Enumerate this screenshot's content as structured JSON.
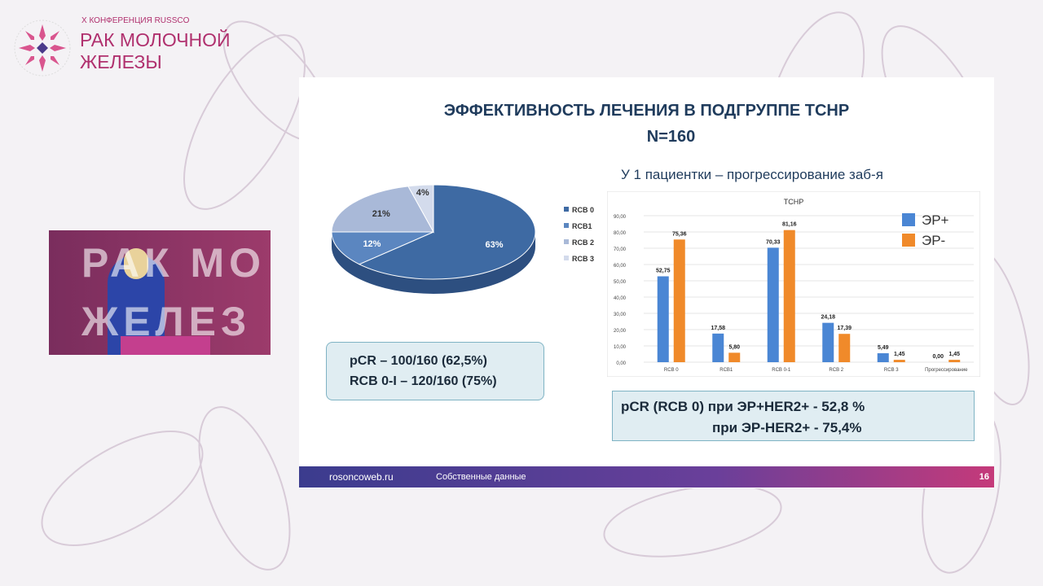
{
  "logo": {
    "subtitle": "X КОНФЕРЕНЦИЯ RUSSCO",
    "title_line1": "РАК МОЛОЧНОЙ",
    "title_line2": "ЖЕЛЕЗЫ",
    "emblem_text": "RUSSCO"
  },
  "slide": {
    "title": "ЭФФЕКТИВНОСТЬ ЛЕЧЕНИЯ В ПОДГРУППЕ ТСНР",
    "subtitle": "N=160",
    "note": "У 1 пациентки – прогрессирование заб-я",
    "box1": {
      "line1": "pCR – 100/160 (62,5%)",
      "line2": "RCB 0-I – 120/160 (75%)"
    },
    "box2": {
      "line1": "pCR (RCB 0) при ЭР+HER2+ -  52,8 %",
      "line2": "при ЭР-HER2+  -  75,4%"
    },
    "footer": {
      "site": "rosoncoweb.ru",
      "source": "Собственные данные",
      "page": "16"
    }
  },
  "video": {
    "bg_text": "РАК МО ЖЕЛЕЗ"
  },
  "chart_data": [
    {
      "type": "pie",
      "labels": [
        "RCB 0",
        "RCB1",
        "RCB 2",
        "RCB 3"
      ],
      "values": [
        63,
        12,
        21,
        4
      ],
      "data_labels": [
        "63%",
        "12%",
        "21%",
        "4%"
      ],
      "colors": [
        "#3e6aa3",
        "#5b86c0",
        "#a9b9d8",
        "#d3dbec"
      ],
      "legend": "right"
    },
    {
      "type": "bar",
      "title": "ТСНР",
      "categories": [
        "RCB 0",
        "RCB1",
        "RCB 0-1",
        "RCB 2",
        "RCB 3",
        "Прогрессирование"
      ],
      "series": [
        {
          "name": "ЭР+",
          "color": "#4a86d4",
          "values": [
            52.75,
            17.58,
            70.33,
            24.18,
            5.49,
            0.0
          ],
          "labels": [
            "52,75",
            "17,58",
            "70,33",
            "24,18",
            "5,49",
            "0,00"
          ]
        },
        {
          "name": "ЭР-",
          "color": "#f08a2a",
          "values": [
            75.36,
            5.8,
            81.16,
            17.39,
            1.45,
            1.45
          ],
          "labels": [
            "75,36",
            "5,80",
            "81,16",
            "17,39",
            "1,45",
            "1,45"
          ]
        }
      ],
      "ylim": [
        0,
        90
      ],
      "yticks": [
        "0,00",
        "10,00",
        "20,00",
        "30,00",
        "40,00",
        "50,00",
        "60,00",
        "70,00",
        "80,00",
        "90,00"
      ],
      "grid": true,
      "legend": "top-right"
    }
  ]
}
